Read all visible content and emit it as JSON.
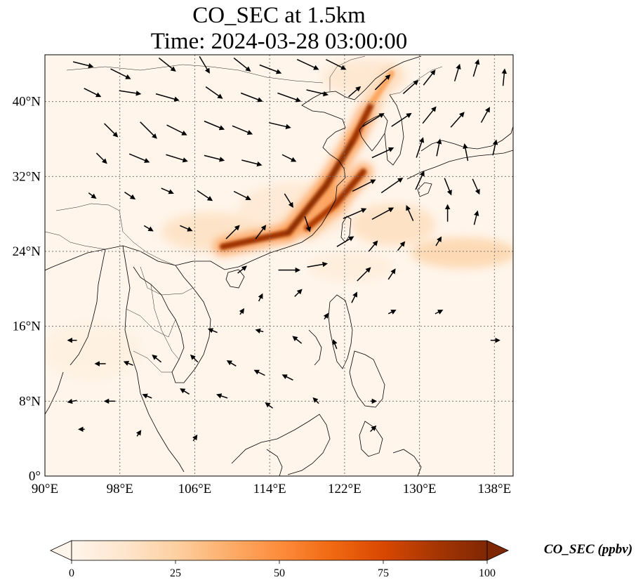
{
  "title": {
    "line1": "CO_SEC at 1.5km",
    "line2": "Time: 2024-03-28 03:00:00"
  },
  "map": {
    "extent": {
      "lon_min": 90,
      "lon_max": 140,
      "lat_min": 0,
      "lat_max": 45
    },
    "lon_ticks": [
      {
        "value": 90,
        "label": "90°E"
      },
      {
        "value": 98,
        "label": "98°E"
      },
      {
        "value": 106,
        "label": "106°E"
      },
      {
        "value": 114,
        "label": "114°E"
      },
      {
        "value": 122,
        "label": "122°E"
      },
      {
        "value": 130,
        "label": "130°E"
      },
      {
        "value": 138,
        "label": "138°E"
      }
    ],
    "lat_ticks": [
      {
        "value": 0,
        "label": "0°"
      },
      {
        "value": 8,
        "label": "8°N"
      },
      {
        "value": 16,
        "label": "16°N"
      },
      {
        "value": 24,
        "label": "24°N"
      },
      {
        "value": 32,
        "label": "32°N"
      },
      {
        "value": 40,
        "label": "40°N"
      }
    ],
    "gridlines": true,
    "background_color": "#fff5eb"
  },
  "colorbar": {
    "label": "CO_SEC (ppbv)",
    "min": 0,
    "max": 100,
    "ticks": [
      "0",
      "25",
      "50",
      "75",
      "100"
    ],
    "extend": "both",
    "colormap": "OrRd",
    "colors": [
      "#fff5eb",
      "#fee6ce",
      "#fdd0a2",
      "#fdae6b",
      "#fd8d3c",
      "#f16913",
      "#d94801",
      "#a63603",
      "#7f2704"
    ]
  },
  "plume": {
    "description_color_high": "#8b0000",
    "segments": [
      {
        "lon1": 109,
        "lat1": 24.5,
        "lon2": 116,
        "lat2": 26,
        "value": 90
      },
      {
        "lon1": 116,
        "lat1": 26,
        "lon2": 120,
        "lat2": 31,
        "value": 95
      },
      {
        "lon1": 120,
        "lat1": 31,
        "lon2": 123,
        "lat2": 36,
        "value": 95
      },
      {
        "lon1": 123,
        "lat1": 36,
        "lon2": 125,
        "lat2": 40,
        "value": 90
      },
      {
        "lon1": 118,
        "lat1": 26.5,
        "lon2": 121,
        "lat2": 29,
        "value": 85
      },
      {
        "lon1": 121,
        "lat1": 29,
        "lon2": 124,
        "lat2": 32.5,
        "value": 90
      },
      {
        "lon1": 125,
        "lat1": 40,
        "lon2": 127,
        "lat2": 43,
        "value": 40
      }
    ]
  },
  "wind_vectors": [
    {
      "lon": 94,
      "lat": 44,
      "u": 1.2,
      "v": -0.3
    },
    {
      "lon": 98,
      "lat": 43,
      "u": 1.2,
      "v": -0.6
    },
    {
      "lon": 103,
      "lat": 44,
      "u": 1.0,
      "v": -0.8
    },
    {
      "lon": 107,
      "lat": 44,
      "u": 0.6,
      "v": -1.0
    },
    {
      "lon": 111,
      "lat": 44,
      "u": 1.0,
      "v": -0.8
    },
    {
      "lon": 114,
      "lat": 43.5,
      "u": 1.3,
      "v": -0.5
    },
    {
      "lon": 118,
      "lat": 44,
      "u": 1.3,
      "v": -0.6
    },
    {
      "lon": 121,
      "lat": 44,
      "u": 1.2,
      "v": -0.6
    },
    {
      "lon": 95,
      "lat": 41,
      "u": 1.0,
      "v": -0.5
    },
    {
      "lon": 99,
      "lat": 41,
      "u": 1.3,
      "v": -0.2
    },
    {
      "lon": 103,
      "lat": 40.5,
      "u": 1.4,
      "v": -0.4
    },
    {
      "lon": 108,
      "lat": 41,
      "u": 1.0,
      "v": -0.7
    },
    {
      "lon": 112,
      "lat": 40.5,
      "u": 1.3,
      "v": -0.5
    },
    {
      "lon": 116,
      "lat": 40.5,
      "u": 1.4,
      "v": -0.5
    },
    {
      "lon": 119,
      "lat": 41,
      "u": 1.3,
      "v": -0.3
    },
    {
      "lon": 97,
      "lat": 37,
      "u": 0.8,
      "v": -0.8
    },
    {
      "lon": 101,
      "lat": 37,
      "u": 1.0,
      "v": -1.0
    },
    {
      "lon": 104,
      "lat": 37,
      "u": 1.2,
      "v": -0.6
    },
    {
      "lon": 108,
      "lat": 37.5,
      "u": 1.2,
      "v": -0.5
    },
    {
      "lon": 111,
      "lat": 37,
      "u": 1.2,
      "v": -0.5
    },
    {
      "lon": 115,
      "lat": 37.5,
      "u": 1.3,
      "v": -0.3
    },
    {
      "lon": 96,
      "lat": 34,
      "u": 0.6,
      "v": -0.6
    },
    {
      "lon": 100,
      "lat": 34,
      "u": 1.2,
      "v": -0.5
    },
    {
      "lon": 104,
      "lat": 34,
      "u": 1.3,
      "v": -0.4
    },
    {
      "lon": 108,
      "lat": 34,
      "u": 1.2,
      "v": -0.3
    },
    {
      "lon": 112,
      "lat": 33.5,
      "u": 1.2,
      "v": -0.3
    },
    {
      "lon": 116,
      "lat": 34,
      "u": 0.8,
      "v": -0.4
    },
    {
      "lon": 95,
      "lat": 30,
      "u": 0.4,
      "v": -0.3
    },
    {
      "lon": 99,
      "lat": 30,
      "u": 0.6,
      "v": -0.4
    },
    {
      "lon": 103,
      "lat": 30.5,
      "u": 0.7,
      "v": -0.3
    },
    {
      "lon": 107,
      "lat": 30,
      "u": 0.9,
      "v": -0.6
    },
    {
      "lon": 111,
      "lat": 30,
      "u": 1.0,
      "v": -0.5
    },
    {
      "lon": 116,
      "lat": 29.5,
      "u": 0.5,
      "v": -0.8
    },
    {
      "lon": 101,
      "lat": 26.5,
      "u": 0.5,
      "v": -0.3
    },
    {
      "lon": 105,
      "lat": 26.5,
      "u": 0.7,
      "v": -0.3
    },
    {
      "lon": 110,
      "lat": 26,
      "u": 0.8,
      "v": 0.8
    },
    {
      "lon": 113,
      "lat": 26,
      "u": 0.6,
      "v": 0.8
    },
    {
      "lon": 118,
      "lat": 27,
      "u": 0.3,
      "v": -0.9
    },
    {
      "lon": 123,
      "lat": 41,
      "u": 0.7,
      "v": 0.6
    },
    {
      "lon": 126,
      "lat": 42,
      "u": 0.9,
      "v": 0.9
    },
    {
      "lon": 129,
      "lat": 41.5,
      "u": 0.9,
      "v": 0.8
    },
    {
      "lon": 131,
      "lat": 42.5,
      "u": 0.7,
      "v": 0.9
    },
    {
      "lon": 134,
      "lat": 43,
      "u": 0.3,
      "v": 1.0
    },
    {
      "lon": 136,
      "lat": 43.5,
      "u": 0.3,
      "v": 1.0
    },
    {
      "lon": 139,
      "lat": 42.5,
      "u": 0.1,
      "v": 1.0
    },
    {
      "lon": 125,
      "lat": 38,
      "u": 1.3,
      "v": 0.8
    },
    {
      "lon": 128,
      "lat": 38,
      "u": 1.2,
      "v": 0.8
    },
    {
      "lon": 131,
      "lat": 38.5,
      "u": 0.8,
      "v": 1.0
    },
    {
      "lon": 134,
      "lat": 38,
      "u": 0.8,
      "v": 0.9
    },
    {
      "lon": 137,
      "lat": 38.5,
      "u": 0.5,
      "v": 0.9
    },
    {
      "lon": 126,
      "lat": 34.5,
      "u": 1.3,
      "v": 0.6
    },
    {
      "lon": 130,
      "lat": 35,
      "u": 0.4,
      "v": 1.2
    },
    {
      "lon": 132,
      "lat": 35,
      "u": 0.2,
      "v": 1.0
    },
    {
      "lon": 135,
      "lat": 34.5,
      "u": -0.2,
      "v": 1.0
    },
    {
      "lon": 138,
      "lat": 35,
      "u": 0.2,
      "v": 0.9
    },
    {
      "lon": 124,
      "lat": 31,
      "u": 1.4,
      "v": 0.7
    },
    {
      "lon": 127,
      "lat": 31,
      "u": 1.3,
      "v": 0.9
    },
    {
      "lon": 130,
      "lat": 31.5,
      "u": 0.5,
      "v": 1.1
    },
    {
      "lon": 133,
      "lat": 31,
      "u": 0.4,
      "v": -1.0
    },
    {
      "lon": 136,
      "lat": 31,
      "u": 0.4,
      "v": -0.9
    },
    {
      "lon": 123,
      "lat": 28,
      "u": 1.4,
      "v": 0.6
    },
    {
      "lon": 126,
      "lat": 28,
      "u": 1.3,
      "v": 0.7
    },
    {
      "lon": 129,
      "lat": 28,
      "u": -0.4,
      "v": 0.9
    },
    {
      "lon": 133,
      "lat": 28,
      "u": 0.0,
      "v": 1.0
    },
    {
      "lon": 136,
      "lat": 27.5,
      "u": 0.2,
      "v": 0.8
    },
    {
      "lon": 122,
      "lat": 25,
      "u": 1.0,
      "v": 0.6
    },
    {
      "lon": 125,
      "lat": 24.5,
      "u": 0.5,
      "v": 0.6
    },
    {
      "lon": 128,
      "lat": 24.5,
      "u": 0.4,
      "v": 0.5
    },
    {
      "lon": 132,
      "lat": 25,
      "u": 0.3,
      "v": 0.5
    },
    {
      "lon": 124,
      "lat": 21.5,
      "u": 0.8,
      "v": 0.8
    },
    {
      "lon": 127,
      "lat": 21.5,
      "u": 0.4,
      "v": 0.6
    },
    {
      "lon": 123,
      "lat": 19,
      "u": 0.3,
      "v": 0.6
    },
    {
      "lon": 116,
      "lat": 22,
      "u": 1.3,
      "v": 0.0
    },
    {
      "lon": 119,
      "lat": 22.5,
      "u": 1.2,
      "v": 0.2
    },
    {
      "lon": 111,
      "lat": 22,
      "u": 0.5,
      "v": 0.4
    },
    {
      "lon": 113,
      "lat": 19,
      "u": 0.2,
      "v": 0.4
    },
    {
      "lon": 117,
      "lat": 19.5,
      "u": 0.4,
      "v": 0.4
    },
    {
      "lon": 111,
      "lat": 17.5,
      "u": 0.2,
      "v": 0.3
    },
    {
      "lon": 120,
      "lat": 17,
      "u": 0.2,
      "v": 0.3
    },
    {
      "lon": 127,
      "lat": 17.5,
      "u": 0.4,
      "v": 0.2
    },
    {
      "lon": 132,
      "lat": 17.5,
      "u": 0.4,
      "v": 0.2
    },
    {
      "lon": 138,
      "lat": 14.5,
      "u": 0.5,
      "v": 0.0
    },
    {
      "lon": 108,
      "lat": 15.5,
      "u": -0.5,
      "v": 0.2
    },
    {
      "lon": 113,
      "lat": 15.5,
      "u": -0.4,
      "v": 0.1
    },
    {
      "lon": 117,
      "lat": 14.5,
      "u": -0.5,
      "v": 0.4
    },
    {
      "lon": 121,
      "lat": 14,
      "u": -0.2,
      "v": 0.5
    },
    {
      "lon": 93,
      "lat": 14.5,
      "u": -0.5,
      "v": 0.0
    },
    {
      "lon": 96,
      "lat": 12,
      "u": -0.6,
      "v": 0.0
    },
    {
      "lon": 99,
      "lat": 12,
      "u": -0.5,
      "v": 0.2
    },
    {
      "lon": 102,
      "lat": 12.5,
      "u": -0.5,
      "v": 0.4
    },
    {
      "lon": 106,
      "lat": 12.5,
      "u": -0.4,
      "v": 0.4
    },
    {
      "lon": 110,
      "lat": 12,
      "u": -0.5,
      "v": 0.3
    },
    {
      "lon": 113,
      "lat": 11,
      "u": -0.6,
      "v": 0.3
    },
    {
      "lon": 116,
      "lat": 10.5,
      "u": -0.6,
      "v": 0.3
    },
    {
      "lon": 93,
      "lat": 8,
      "u": -0.5,
      "v": -0.1
    },
    {
      "lon": 97,
      "lat": 8,
      "u": -0.6,
      "v": 0.0
    },
    {
      "lon": 101,
      "lat": 8.5,
      "u": -0.5,
      "v": 0.2
    },
    {
      "lon": 105,
      "lat": 9,
      "u": -0.5,
      "v": 0.3
    },
    {
      "lon": 109,
      "lat": 8.5,
      "u": -0.6,
      "v": 0.2
    },
    {
      "lon": 114,
      "lat": 7.5,
      "u": -0.4,
      "v": 0.3
    },
    {
      "lon": 119,
      "lat": 8,
      "u": -0.3,
      "v": 0.3
    },
    {
      "lon": 125,
      "lat": 8,
      "u": 0.3,
      "v": 0.0
    },
    {
      "lon": 100,
      "lat": 4.5,
      "u": 0.2,
      "v": 0.3
    },
    {
      "lon": 106,
      "lat": 4,
      "u": 0.2,
      "v": 0.3
    },
    {
      "lon": 94,
      "lat": 5,
      "u": -0.3,
      "v": 0.0
    },
    {
      "lon": 125,
      "lat": 5,
      "u": 0.3,
      "v": 0.3
    }
  ]
}
